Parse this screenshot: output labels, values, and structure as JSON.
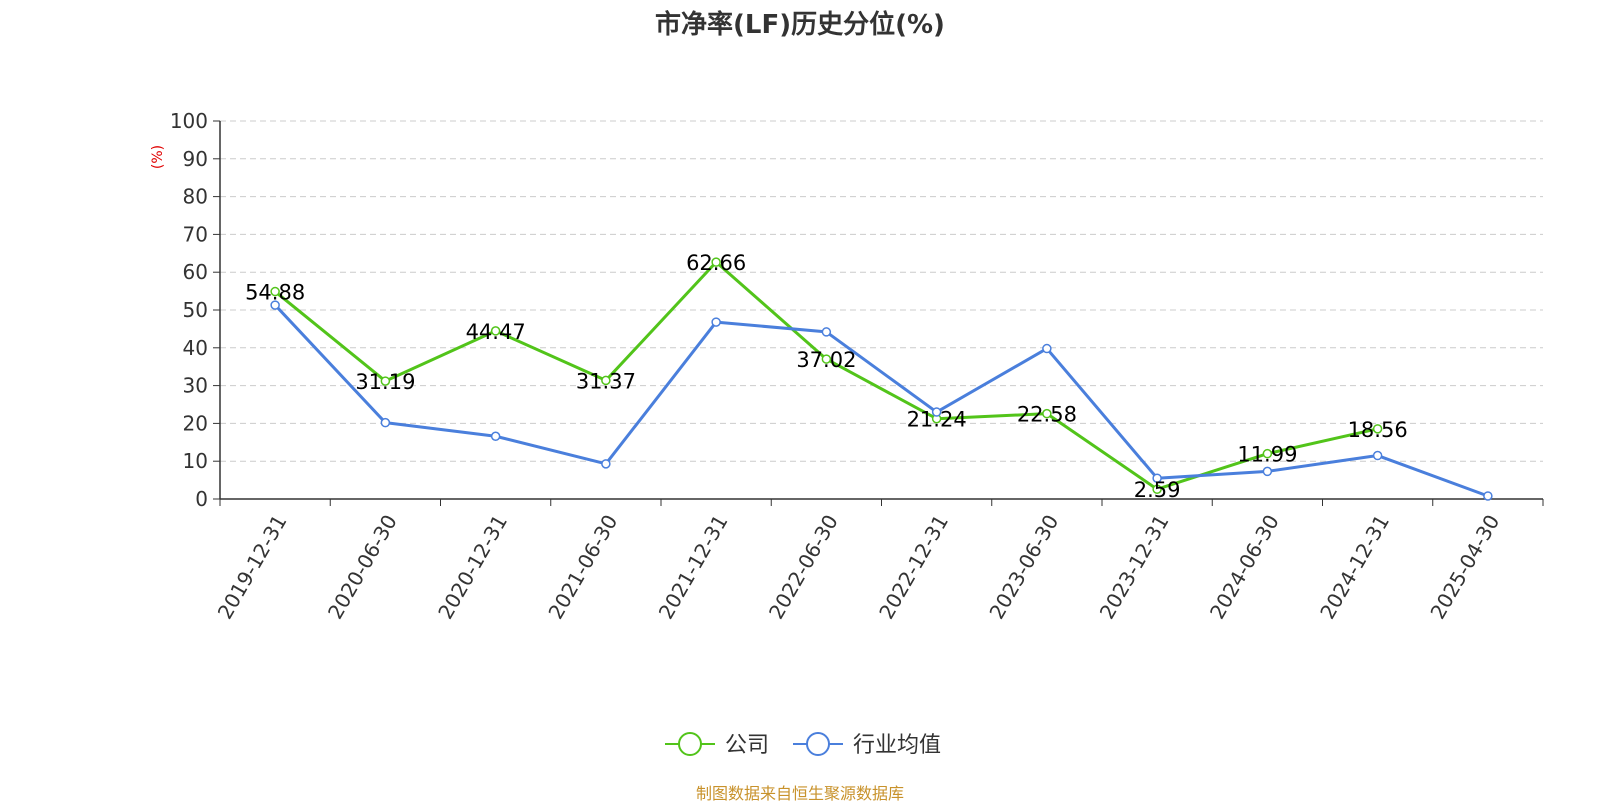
{
  "title": "市净率(LF)历史分位(%)",
  "source": "制图数据来自恒生聚源数据库",
  "colors": {
    "company": "#52c41a",
    "industry": "#4a7fdc",
    "unit": "#e00000",
    "source": "#c8922b"
  },
  "chart_data": {
    "type": "line",
    "title": "市净率(LF)历史分位(%)",
    "ylabel": "(%)",
    "xlabel": "",
    "ylim": [
      0,
      100
    ],
    "yticks": [
      0,
      10,
      20,
      30,
      40,
      50,
      60,
      70,
      80,
      90,
      100
    ],
    "grid": true,
    "legend_position": "bottom-center",
    "categories": [
      "2019-12-31",
      "2020-06-30",
      "2020-12-31",
      "2021-06-30",
      "2021-12-31",
      "2022-06-30",
      "2022-12-31",
      "2023-06-30",
      "2023-12-31",
      "2024-06-30",
      "2024-12-31",
      "2025-04-30"
    ],
    "series": [
      {
        "name": "公司",
        "color": "#52c41a",
        "values": [
          54.88,
          31.19,
          44.47,
          31.37,
          62.66,
          37.02,
          21.24,
          22.58,
          2.59,
          11.99,
          18.56,
          null
        ],
        "labels": [
          "54.88",
          "31.19",
          "44.47",
          "31.37",
          "62.66",
          "37.02",
          "21.24",
          "22.58",
          "2.59",
          "11.99",
          "18.56",
          null
        ]
      },
      {
        "name": "行业均值",
        "color": "#4a7fdc",
        "values": [
          51.3,
          20.2,
          16.6,
          9.3,
          46.8,
          44.2,
          23.0,
          39.8,
          5.5,
          7.3,
          11.5,
          0.8
        ]
      }
    ]
  }
}
